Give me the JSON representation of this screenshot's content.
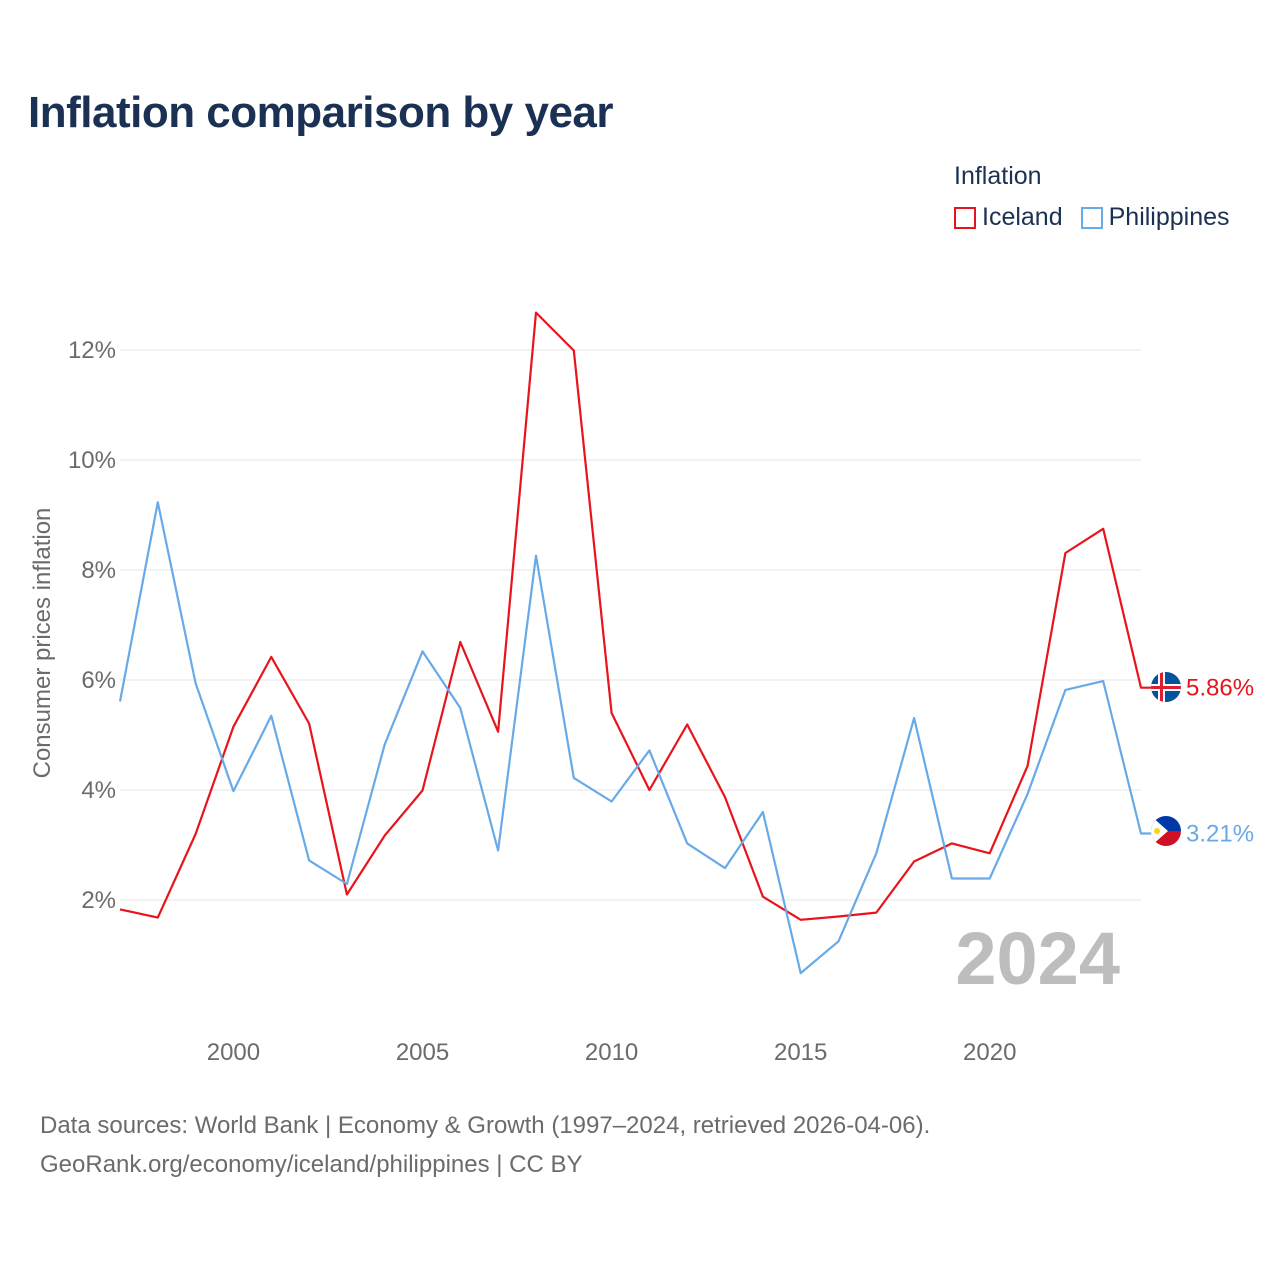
{
  "title": "Inflation comparison by year",
  "legend": {
    "title": "Inflation",
    "items": [
      {
        "label": "Iceland",
        "color": "#e8141c"
      },
      {
        "label": "Philippines",
        "color": "#67aae7"
      }
    ]
  },
  "chart_data": {
    "type": "line",
    "title": "Inflation comparison by year",
    "xlabel": "",
    "ylabel": "Consumer prices inflation",
    "x": [
      1997,
      1998,
      1999,
      2000,
      2001,
      2002,
      2003,
      2004,
      2005,
      2006,
      2007,
      2008,
      2009,
      2010,
      2011,
      2012,
      2013,
      2014,
      2015,
      2016,
      2017,
      2018,
      2019,
      2020,
      2021,
      2022,
      2023,
      2024
    ],
    "xlim": [
      1997,
      2024
    ],
    "ylim": [
      0,
      13
    ],
    "x_ticks": [
      2000,
      2005,
      2010,
      2015,
      2020
    ],
    "y_ticks": [
      2,
      4,
      6,
      8,
      10,
      12
    ],
    "y_tick_labels": [
      "2%",
      "4%",
      "6%",
      "8%",
      "10%",
      "12%"
    ],
    "x_tick_labels": [
      "2000",
      "2005",
      "2010",
      "2015",
      "2020"
    ],
    "grid": true,
    "watermark_year": "2024",
    "series": [
      {
        "name": "Iceland",
        "color": "#e8141c",
        "end_label": "5.86%",
        "values": [
          1.83,
          1.68,
          3.2,
          5.15,
          6.42,
          5.21,
          2.1,
          3.17,
          3.99,
          6.69,
          5.06,
          12.68,
          11.99,
          5.4,
          4.0,
          5.19,
          3.87,
          2.06,
          1.64,
          1.7,
          1.77,
          2.7,
          3.03,
          2.85,
          4.44,
          8.31,
          8.75,
          5.86
        ]
      },
      {
        "name": "Philippines",
        "color": "#67aae7",
        "end_label": "3.21%",
        "values": [
          5.61,
          9.23,
          5.94,
          3.98,
          5.35,
          2.72,
          2.29,
          4.83,
          6.52,
          5.49,
          2.9,
          8.26,
          4.22,
          3.79,
          4.72,
          3.03,
          2.58,
          3.6,
          0.67,
          1.25,
          2.85,
          5.31,
          2.39,
          2.39,
          3.93,
          5.82,
          5.98,
          3.21
        ]
      }
    ]
  },
  "footer": {
    "line1": "Data sources: World Bank | Economy & Growth (1997–2024, retrieved 2026-04-06).",
    "line2": "GeoRank.org/economy/iceland/philippines | CC BY"
  }
}
